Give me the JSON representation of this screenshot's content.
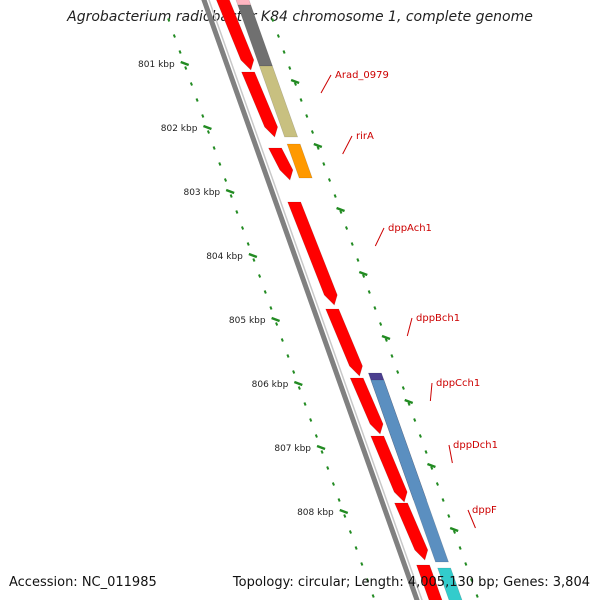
{
  "title": "Agrobacterium radiobacter K84 chromosome 1, complete genome",
  "footer": {
    "accession": "Accession: NC_011985",
    "summary": "Topology: circular; Length: 4,005,130 bp; Genes: 3,804"
  },
  "scale": {
    "unit": "kbp",
    "ticks": [
      {
        "kbp": 801,
        "label": "801 kbp"
      },
      {
        "kbp": 802,
        "label": "802 kbp"
      },
      {
        "kbp": 803,
        "label": "803 kbp"
      },
      {
        "kbp": 804,
        "label": "804 kbp"
      },
      {
        "kbp": 805,
        "label": "805 kbp"
      },
      {
        "kbp": 806,
        "label": "806 kbp"
      },
      {
        "kbp": 807,
        "label": "807 kbp"
      },
      {
        "kbp": 808,
        "label": "808 kbp"
      }
    ]
  },
  "gene_labels": [
    {
      "name": "Arad_0979"
    },
    {
      "name": "rirA"
    },
    {
      "name": "dppAch1"
    },
    {
      "name": "dppBch1"
    },
    {
      "name": "dppCch1"
    },
    {
      "name": "dppDch1"
    },
    {
      "name": "dppF"
    }
  ],
  "colors": {
    "backbone": "#808080",
    "gene": "#ff0000",
    "gene_dark": "#cc0000",
    "scale_tick": "#228b22",
    "cog_olive": "#c8c080",
    "cog_orange": "#ff9900",
    "cog_purple": "#4b3f8f",
    "cog_blue": "#5b8fc0",
    "cog_gray": "#707070",
    "cog_pink": "#ffb6c1",
    "cog_cyan": "#33cccc",
    "label": "#cc0000"
  }
}
